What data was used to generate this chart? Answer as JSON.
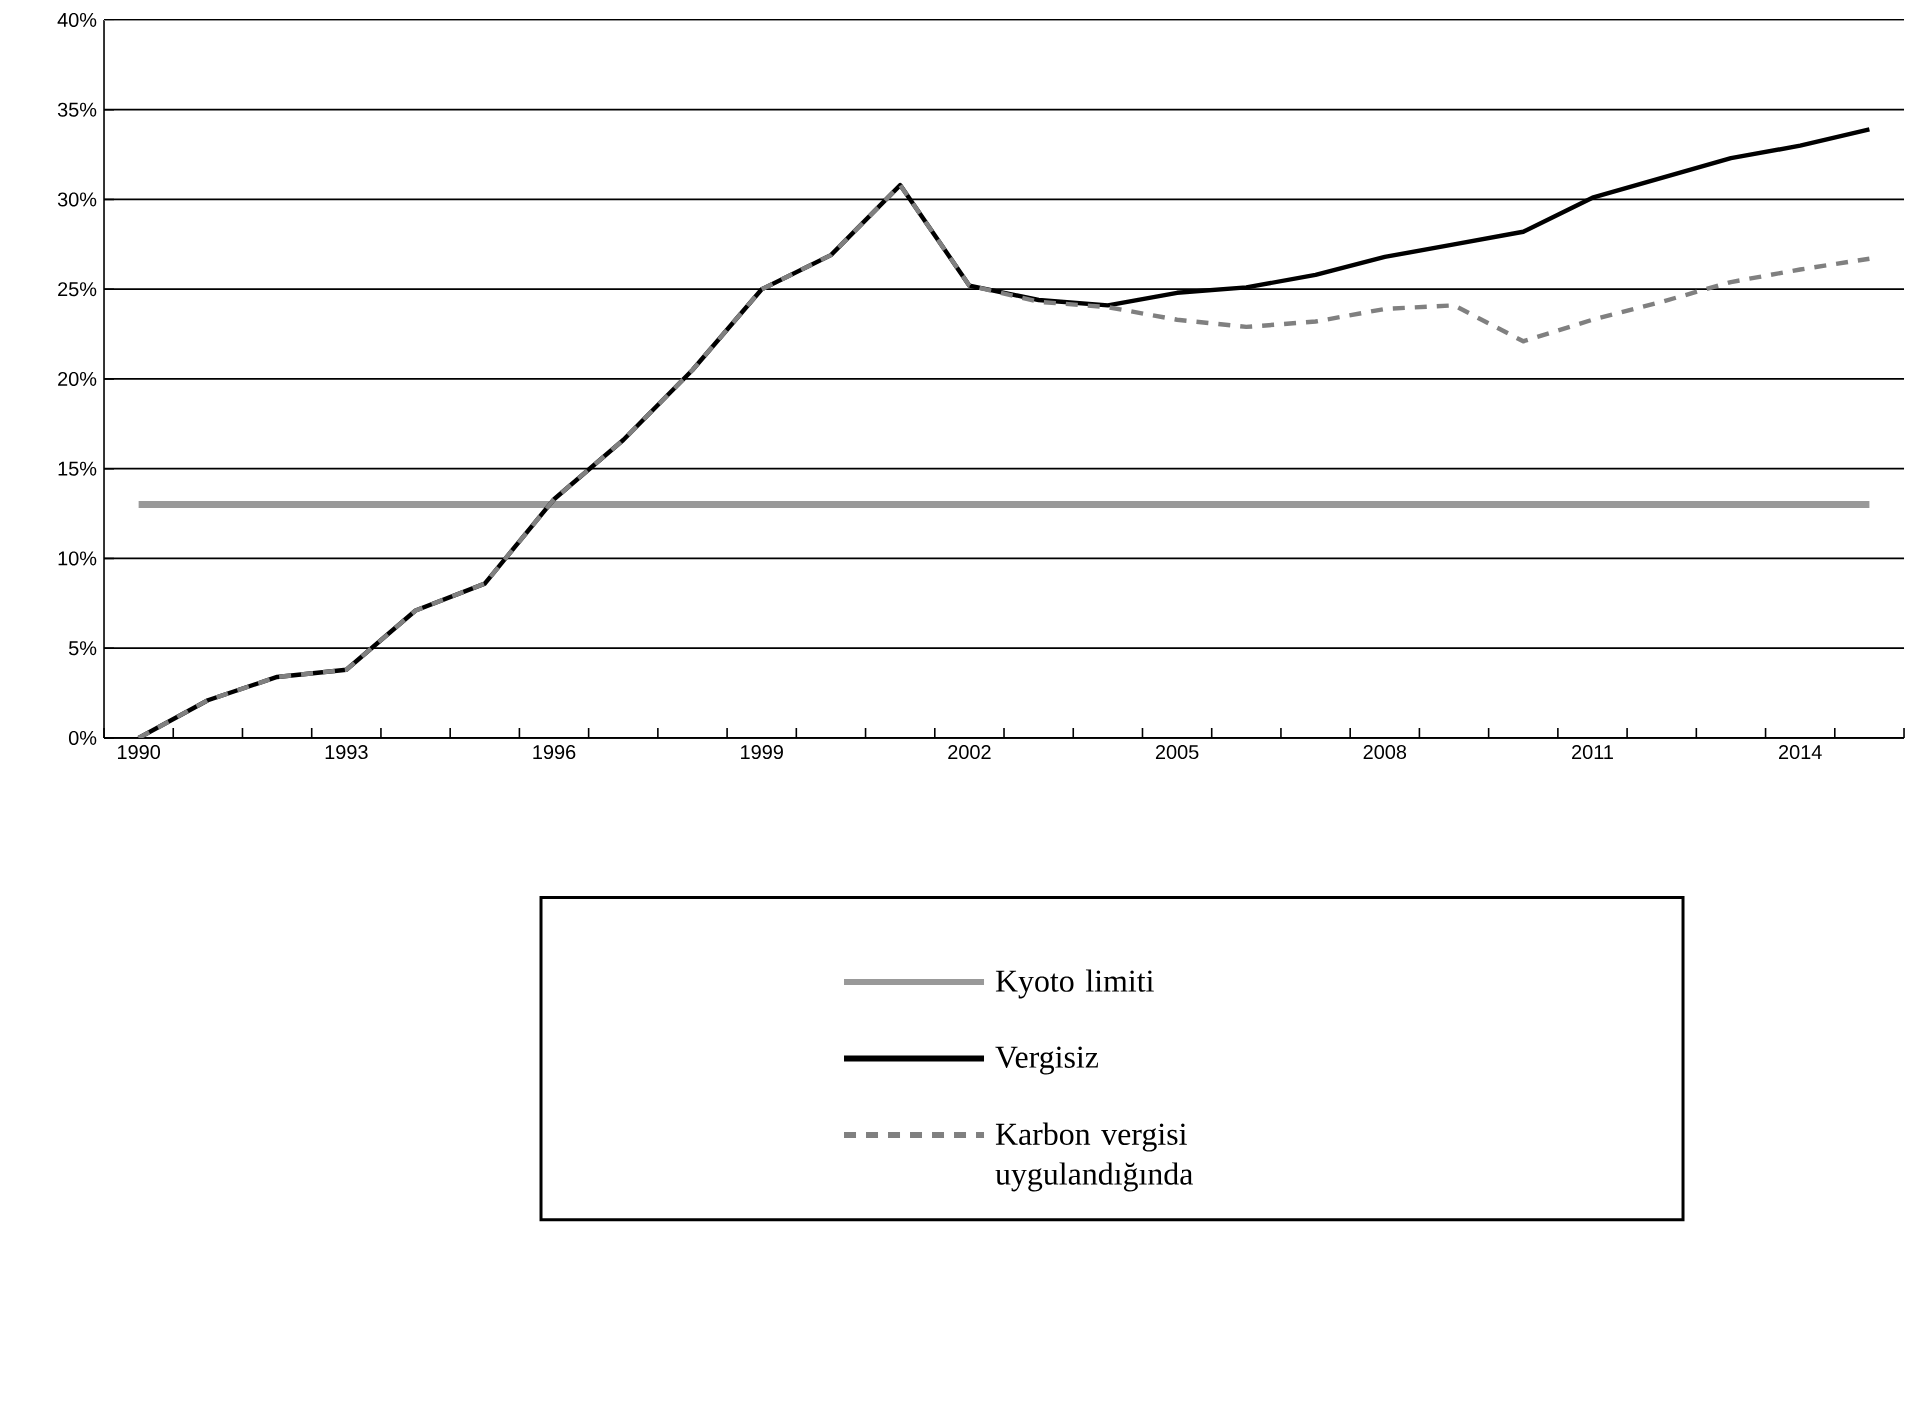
{
  "chart_data": {
    "type": "line",
    "categories": [
      "1990",
      null,
      null,
      "1993",
      null,
      null,
      "1996",
      null,
      null,
      "1999",
      null,
      null,
      "2002",
      null,
      null,
      "2005",
      null,
      null,
      "2008",
      null,
      null,
      "2011",
      null,
      null,
      "2014",
      null
    ],
    "series": [
      {
        "name": "Kyoto limiti",
        "color": "#999999",
        "values": [
          13,
          13,
          13,
          13,
          13,
          13,
          13,
          13,
          13,
          13,
          13,
          13,
          13,
          13,
          13,
          13,
          13,
          13,
          13,
          13,
          13,
          13,
          13,
          13,
          13,
          13
        ]
      },
      {
        "name": "Vergisiz",
        "color": "#000000",
        "values": [
          0,
          2.1,
          3.4,
          3.8,
          7.1,
          8.6,
          13.3,
          16.6,
          20.5,
          25.0,
          26.9,
          30.8,
          25.2,
          24.4,
          24.1,
          24.8,
          25.1,
          25.8,
          26.8,
          27.5,
          28.2,
          30.1,
          31.2,
          32.3,
          33.0,
          33.9
        ]
      },
      {
        "name": "Karbon vergisi uygulandığında",
        "color": "#808080",
        "line_style": "dashed",
        "values": [
          0,
          2.1,
          3.4,
          3.8,
          7.1,
          8.6,
          13.3,
          16.6,
          20.5,
          25.0,
          26.9,
          30.8,
          25.2,
          24.3,
          24.0,
          23.3,
          22.9,
          23.2,
          23.9,
          24.1,
          22.1,
          23.3,
          24.3,
          25.4,
          26.1,
          26.7
        ]
      }
    ],
    "ylim": [
      0,
      40
    ],
    "yticks": [
      {
        "value": 0,
        "label": "0%"
      },
      {
        "value": 5,
        "label": "5%"
      },
      {
        "value": 10,
        "label": "10%"
      },
      {
        "value": 15,
        "label": "15%"
      },
      {
        "value": 20,
        "label": "20%"
      },
      {
        "value": 25,
        "label": "25%"
      },
      {
        "value": 30,
        "label": "30%"
      },
      {
        "value": 35,
        "label": "35%"
      },
      {
        "value": 40,
        "label": "40%"
      }
    ],
    "grid": "y",
    "legend": "bottom",
    "marker": "none"
  }
}
